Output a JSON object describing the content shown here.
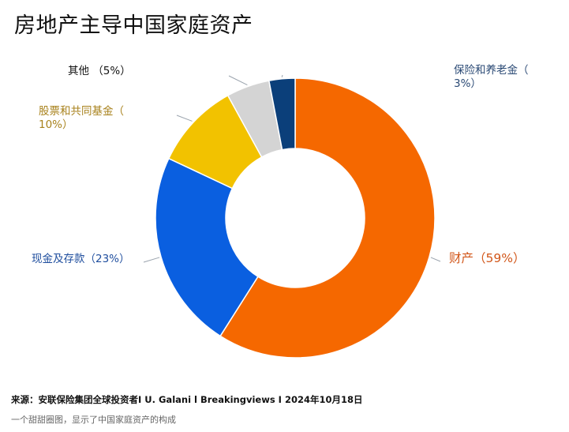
{
  "title": "房地产主导中国家庭资产",
  "source": "来源：安联保险集团全球投资者I U. Galani l Breakingviews I 2024年10月18日",
  "caption": "一个甜甜圈图，显示了中国家庭资产的构成",
  "chart_data": {
    "type": "pie",
    "variant": "donut",
    "title": "房地产主导中国家庭资产",
    "start": "12 o'clock, clockwise",
    "slices": [
      {
        "label": "财产（59%）",
        "value": 59,
        "color": "#F56800",
        "label_color": "#D2571A"
      },
      {
        "label": "现金及存款（23%）",
        "value": 23,
        "color": "#0A5FE0",
        "label_color": "#1F4E9E"
      },
      {
        "label": "股票和共同基金（10%）",
        "value": 10,
        "color": "#F2C200",
        "label_color": "#A8821C"
      },
      {
        "label": "其他 （5%）",
        "value": 5,
        "color": "#D4D4D4",
        "label_color": "#111111"
      },
      {
        "label": "保险和养老金（3%）",
        "value": 3,
        "color": "#0B3F7A",
        "label_color": "#2B4A75"
      }
    ]
  }
}
